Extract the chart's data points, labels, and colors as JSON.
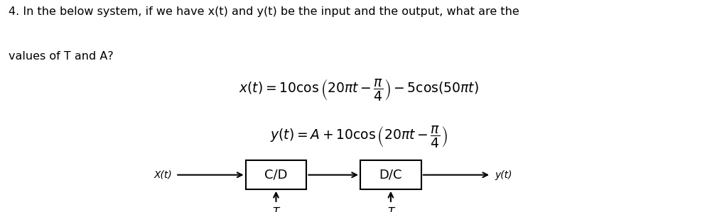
{
  "title_line1": "4. In the below system, if we have x(t) and y(t) be the input and the output, what are the",
  "title_line2": "values of T and A?",
  "eq1": "$x(t) = 10 \\cos \\left(20\\pi t - \\dfrac{\\pi}{4}\\right) - 5 \\cos(50\\pi t)$",
  "eq2": "$y(t) = A + 10 \\cos \\left(20\\pi t - \\dfrac{\\pi}{4}\\right)$",
  "block1_label": "C/D",
  "block2_label": "D/C",
  "input_label": "X(t)",
  "output_label": "y(t)",
  "arrow_label": "T",
  "bg_color": "#ffffff",
  "text_color": "#000000",
  "fontsize_title": 11.5,
  "fontsize_eq": 13.5,
  "fontsize_block": 13,
  "fontsize_io": 10,
  "fontsize_T": 11
}
